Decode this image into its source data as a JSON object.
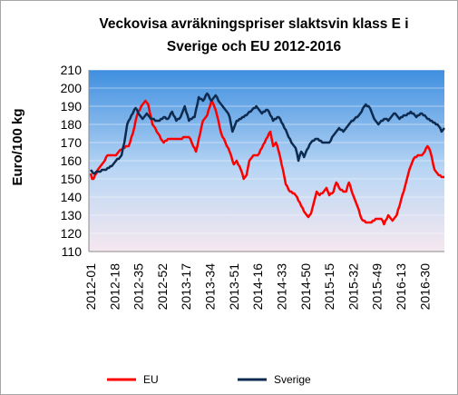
{
  "chart_data": {
    "type": "line",
    "title": "Veckovisa avräkningspriser slaktsvin klass E i Sverige och EU 2012-2016",
    "y_label": "Euro/100 kg",
    "ylim": [
      110,
      210
    ],
    "yticks": [
      110,
      120,
      130,
      140,
      150,
      160,
      170,
      180,
      190,
      200,
      210
    ],
    "grid": true,
    "legend": "bottom",
    "categories": [
      "2012-01",
      null,
      null,
      null,
      null,
      null,
      null,
      null,
      null,
      null,
      null,
      null,
      null,
      null,
      null,
      null,
      null,
      "2012-18",
      null,
      null,
      null,
      null,
      null,
      null,
      null,
      null,
      null,
      null,
      null,
      null,
      null,
      null,
      null,
      null,
      "2012-35",
      null,
      null,
      null,
      null,
      null,
      null,
      null,
      null,
      null,
      null,
      null,
      null,
      null,
      null,
      null,
      null,
      "2012-52",
      null,
      null,
      null,
      null,
      null,
      null,
      null,
      null,
      null,
      null,
      null,
      null,
      null,
      null,
      null,
      null,
      "2013-17",
      null,
      null,
      null,
      null,
      null,
      null,
      null,
      null,
      null,
      null,
      null,
      null,
      null,
      null,
      null,
      null,
      "2013-34",
      null,
      null,
      null,
      null,
      null,
      null,
      null,
      null,
      null,
      null,
      null,
      null,
      null,
      null,
      null,
      null,
      "2013-51",
      null,
      null,
      null,
      null,
      null,
      null,
      null,
      null,
      null,
      null,
      null,
      null,
      null,
      null,
      null,
      null,
      "2014-16",
      null,
      null,
      null,
      null,
      null,
      null,
      null,
      null,
      null,
      null,
      null,
      null,
      null,
      null,
      null,
      null,
      "2014-33",
      null,
      null,
      null,
      null,
      null,
      null,
      null,
      null,
      null,
      null,
      null,
      null,
      null,
      null,
      null,
      null,
      "2014-50",
      null,
      null,
      null,
      null,
      null,
      null,
      null,
      null,
      null,
      null,
      null,
      null,
      null,
      null,
      null,
      null,
      "2015-15",
      null,
      null,
      null,
      null,
      null,
      null,
      null,
      null,
      null,
      null,
      null,
      null,
      null,
      null,
      null,
      null,
      "2015-32",
      null,
      null,
      null,
      null,
      null,
      null,
      null,
      null,
      null,
      null,
      null,
      null,
      null,
      null,
      null,
      null,
      "2015-49",
      null,
      null,
      null,
      null,
      null,
      null,
      null,
      null,
      null,
      null,
      null,
      null,
      null,
      null,
      null,
      null,
      "2016-13",
      null,
      null,
      null,
      null,
      null,
      null,
      null,
      null,
      null,
      null,
      null,
      null,
      null,
      null,
      null,
      null,
      "2016-30",
      null,
      null,
      null,
      null,
      null,
      null,
      null,
      null,
      null,
      null,
      null,
      null,
      null,
      null
    ],
    "series": [
      {
        "name": "EU",
        "color": "#ff0000",
        "values": [
          153,
          150,
          150,
          152,
          153,
          155,
          156,
          157,
          158,
          159,
          160,
          162,
          163,
          163,
          163,
          163,
          163,
          163,
          163,
          164,
          165,
          166,
          166,
          167,
          167,
          168,
          168,
          168,
          170,
          173,
          175,
          178,
          182,
          185,
          187,
          188,
          190,
          191,
          192,
          193,
          192,
          191,
          187,
          184,
          180,
          179,
          178,
          176,
          175,
          174,
          172,
          171,
          170,
          171,
          171,
          172,
          172,
          172,
          172,
          172,
          172,
          172,
          172,
          172,
          172,
          172,
          173,
          173,
          173,
          173,
          173,
          172,
          170,
          168,
          167,
          165,
          168,
          172,
          175,
          179,
          182,
          183,
          184,
          185,
          188,
          190,
          193,
          192,
          190,
          188,
          185,
          182,
          178,
          175,
          173,
          172,
          170,
          168,
          167,
          165,
          163,
          160,
          158,
          159,
          160,
          158,
          157,
          155,
          153,
          150,
          151,
          152,
          156,
          160,
          161,
          162,
          163,
          163,
          163,
          163,
          164,
          166,
          167,
          169,
          170,
          172,
          173,
          175,
          176,
          172,
          168,
          169,
          170,
          168,
          165,
          162,
          158,
          155,
          151,
          147,
          146,
          144,
          143,
          143,
          142,
          142,
          141,
          140,
          138,
          137,
          135,
          134,
          132,
          131,
          130,
          129,
          130,
          131,
          134,
          137,
          140,
          143,
          142,
          141,
          142,
          142,
          143,
          144,
          145,
          143,
          141,
          142,
          142,
          143,
          146,
          148,
          147,
          145,
          144,
          144,
          143,
          143,
          143,
          146,
          148,
          146,
          143,
          141,
          139,
          137,
          135,
          133,
          130,
          128,
          127,
          127,
          126,
          126,
          126,
          126,
          126,
          127,
          127,
          128,
          128,
          128,
          128,
          128,
          127,
          125,
          127,
          128,
          130,
          129,
          128,
          127,
          128,
          129,
          130,
          133,
          135,
          138,
          141,
          143,
          146,
          149,
          152,
          155,
          157,
          159,
          161,
          162,
          162,
          163,
          163,
          163,
          163,
          164,
          165,
          167,
          168,
          167,
          165,
          162,
          158,
          155,
          154,
          153,
          152,
          152,
          151,
          151,
          151
        ]
      },
      {
        "name": "Sverige",
        "color": "#0d2a4f",
        "values": [
          155,
          154,
          153,
          153,
          154,
          154,
          154,
          154,
          155,
          155,
          155,
          155,
          156,
          156,
          157,
          157,
          158,
          159,
          160,
          161,
          161,
          162,
          163,
          167,
          170,
          175,
          180,
          182,
          183,
          185,
          186,
          188,
          189,
          188,
          186,
          185,
          184,
          183,
          184,
          185,
          186,
          185,
          184,
          183,
          183,
          183,
          182,
          182,
          182,
          182,
          183,
          183,
          184,
          184,
          183,
          183,
          184,
          186,
          187,
          185,
          184,
          182,
          183,
          183,
          184,
          186,
          188,
          190,
          187,
          185,
          182,
          183,
          183,
          184,
          184,
          188,
          191,
          195,
          194,
          194,
          193,
          194,
          196,
          197,
          196,
          194,
          193,
          194,
          195,
          196,
          195,
          193,
          192,
          191,
          190,
          189,
          188,
          187,
          186,
          184,
          180,
          176,
          178,
          180,
          182,
          182,
          183,
          183,
          184,
          184,
          185,
          185,
          186,
          187,
          187,
          188,
          189,
          189,
          190,
          189,
          188,
          187,
          186,
          187,
          187,
          188,
          188,
          187,
          185,
          184,
          182,
          183,
          183,
          184,
          184,
          183,
          181,
          180,
          178,
          177,
          175,
          173,
          172,
          170,
          169,
          168,
          167,
          164,
          160,
          163,
          165,
          164,
          162,
          164,
          166,
          167,
          169,
          170,
          171,
          171,
          172,
          172,
          172,
          171,
          171,
          170,
          170,
          170,
          170,
          170,
          170,
          171,
          173,
          174,
          175,
          176,
          177,
          178,
          177,
          177,
          176,
          177,
          178,
          179,
          180,
          181,
          182,
          182,
          183,
          184,
          184,
          185,
          186,
          187,
          189,
          190,
          191,
          190,
          190,
          189,
          187,
          185,
          183,
          182,
          181,
          180,
          181,
          182,
          182,
          183,
          183,
          183,
          182,
          183,
          184,
          185,
          186,
          186,
          185,
          184,
          183,
          184,
          184,
          185,
          185,
          185,
          186,
          186,
          187,
          186,
          186,
          185,
          184,
          185,
          185,
          186,
          186,
          185,
          185,
          184,
          183,
          183,
          182,
          182,
          181,
          181,
          180,
          180,
          179,
          178,
          176,
          177,
          178
        ]
      }
    ]
  }
}
